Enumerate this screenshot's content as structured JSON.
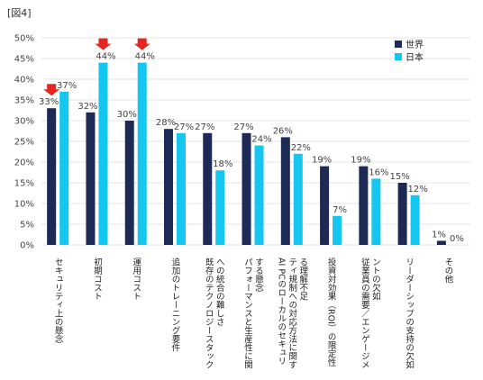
{
  "figure_label": "[図4]",
  "colors": {
    "world": "#1c2a55",
    "japan": "#14c6f0",
    "arrow": "#e5251f",
    "grid": "#dddddd"
  },
  "chart_data": {
    "type": "bar",
    "title": "",
    "xlabel": "",
    "ylabel": "",
    "ylim": [
      0,
      50
    ],
    "yticks": [
      "0%",
      "5%",
      "10%",
      "15%",
      "20%",
      "25%",
      "30%",
      "35%",
      "40%",
      "45%",
      "50%"
    ],
    "legend_position": "top-right",
    "categories": [
      [
        "セキュリティ上の懸念"
      ],
      [
        "初期コスト"
      ],
      [
        "運用コスト"
      ],
      [
        "追加のトレーニング要件"
      ],
      [
        "既存のテクノロジースタック",
        "への統合の難しさ"
      ],
      [
        "パフォーマンスと生産性に関",
        "する懸念"
      ],
      [
        "AI PCのローカルのセキュリ",
        "ティ規制への対応方法に関す",
        "る理解不足"
      ],
      [
        "投資対効果（ROI）の限定性"
      ],
      [
        "従業員の需要／エンゲージメ",
        "ントの欠如"
      ],
      [
        "リーダーシップの支持の欠如"
      ],
      [
        "その他"
      ]
    ],
    "series": [
      {
        "name": "世界",
        "values": [
          33,
          32,
          30,
          28,
          27,
          27,
          26,
          19,
          19,
          15,
          1
        ],
        "labels": [
          "33%",
          "32%",
          "30%",
          "28%",
          "27%",
          "27%",
          "26%",
          "19%",
          "19%",
          "15%",
          "1%"
        ]
      },
      {
        "name": "日本",
        "values": [
          37,
          44,
          44,
          27,
          18,
          24,
          22,
          7,
          16,
          12,
          0
        ],
        "labels": [
          "37%",
          "44%",
          "44%",
          "27%",
          "18%",
          "24%",
          "22%",
          "7%",
          "16%",
          "12%",
          "0%"
        ]
      }
    ],
    "highlight_arrows": [
      0,
      1,
      2
    ]
  }
}
